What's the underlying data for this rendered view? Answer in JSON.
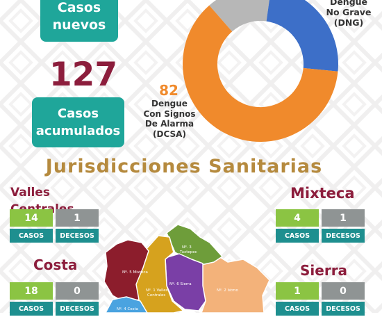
{
  "header": {
    "new_cases_label_line1": "Casos",
    "new_cases_label_line2": "nuevos",
    "accumulated_count": "127",
    "accumulated_label_line1": "Casos",
    "accumulated_label_line2": "acumulados"
  },
  "donut": {
    "segments": [
      {
        "name": "gray",
        "color": "#b7b7b7"
      },
      {
        "name": "dng",
        "color": "#3d6fc8"
      },
      {
        "name": "dcsa",
        "color": "#f08a2c"
      }
    ],
    "dng_label_line1": "Dengue",
    "dng_label_line2": "No Grave",
    "dng_label_line3": "(DNG)",
    "dcsa_value": "82",
    "dcsa_label_line1": "Dengue",
    "dcsa_label_line2": "Con Signos",
    "dcsa_label_line3": "De Alarma",
    "dcsa_label_line4": "(DCSA)"
  },
  "section_title": "Jurisdicciones Sanitarias",
  "stat_labels": {
    "casos": "CASOS",
    "decesos": "DECESOS"
  },
  "regions": {
    "valles": {
      "name": "Valles Centrales",
      "casos": "14",
      "decesos": "1"
    },
    "mixteca": {
      "name": "Mixteca",
      "casos": "4",
      "decesos": "1"
    },
    "costa": {
      "name": "Costa",
      "casos": "18",
      "decesos": "0"
    },
    "sierra": {
      "name": "Sierra",
      "casos": "1",
      "decesos": "0"
    }
  },
  "map": {
    "mixteca": {
      "label": "Nº. 5 Mixteca",
      "color": "#8c1d2c"
    },
    "valles": {
      "label_line1": "Nº. 1 Valles",
      "label_line2": "Centrales",
      "color": "#d6a21e"
    },
    "tuxtepec": {
      "label_line1": "Nº. 3",
      "label_line2": "Tuxtepec",
      "color": "#6e9d3a"
    },
    "sierra": {
      "label": "Nº. 6 Sierra",
      "color": "#7a3fa6"
    },
    "istmo": {
      "label": "Nº. 2 Istmo",
      "color": "#f3b27a"
    },
    "costa": {
      "label": "Nº. 4 Costa",
      "color": "#4aa3e0"
    }
  }
}
